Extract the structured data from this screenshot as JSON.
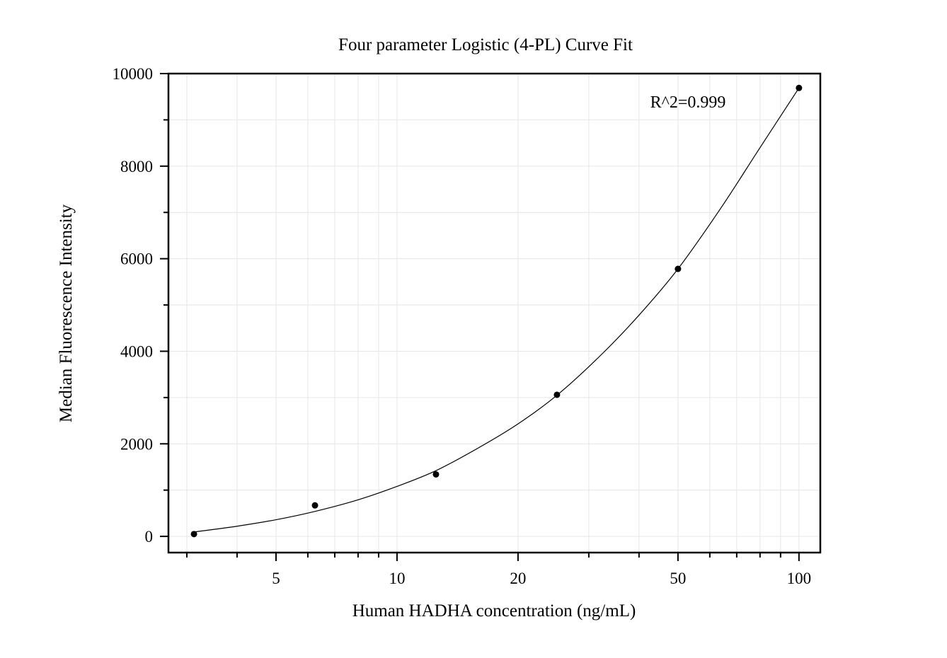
{
  "chart_data": {
    "type": "scatter",
    "title": "Four parameter Logistic (4-PL) Curve Fit",
    "xlabel": "Human HADHA concentration (ng/mL)",
    "ylabel": "Median Fluorescence Intensity",
    "x_scale": "log",
    "xlim": [
      2.7,
      113
    ],
    "ylim": [
      -350,
      10000
    ],
    "x_ticks": [
      5,
      10,
      20,
      50,
      100
    ],
    "x_tick_labels": [
      "5",
      "10",
      "20",
      "50",
      "100"
    ],
    "y_ticks": [
      0,
      2000,
      4000,
      6000,
      8000,
      10000
    ],
    "y_tick_labels": [
      "0",
      "2000",
      "4000",
      "6000",
      "8000",
      "10000"
    ],
    "grid": true,
    "annotation": "R^2=0.999",
    "points": [
      {
        "x": 3.125,
        "y": 50
      },
      {
        "x": 6.25,
        "y": 670
      },
      {
        "x": 12.5,
        "y": 1340
      },
      {
        "x": 25,
        "y": 3060
      },
      {
        "x": 50,
        "y": 5780
      },
      {
        "x": 100,
        "y": 9690
      }
    ],
    "fit_curve": [
      {
        "x": 3.125,
        "y": 95
      },
      {
        "x": 4,
        "y": 220
      },
      {
        "x": 5,
        "y": 360
      },
      {
        "x": 6.25,
        "y": 540
      },
      {
        "x": 8,
        "y": 790
      },
      {
        "x": 10,
        "y": 1080
      },
      {
        "x": 12.5,
        "y": 1420
      },
      {
        "x": 16,
        "y": 1920
      },
      {
        "x": 20,
        "y": 2430
      },
      {
        "x": 25,
        "y": 3050
      },
      {
        "x": 32,
        "y": 3900
      },
      {
        "x": 40,
        "y": 4780
      },
      {
        "x": 50,
        "y": 5780
      },
      {
        "x": 64,
        "y": 7100
      },
      {
        "x": 80,
        "y": 8400
      },
      {
        "x": 100,
        "y": 9690
      }
    ]
  }
}
